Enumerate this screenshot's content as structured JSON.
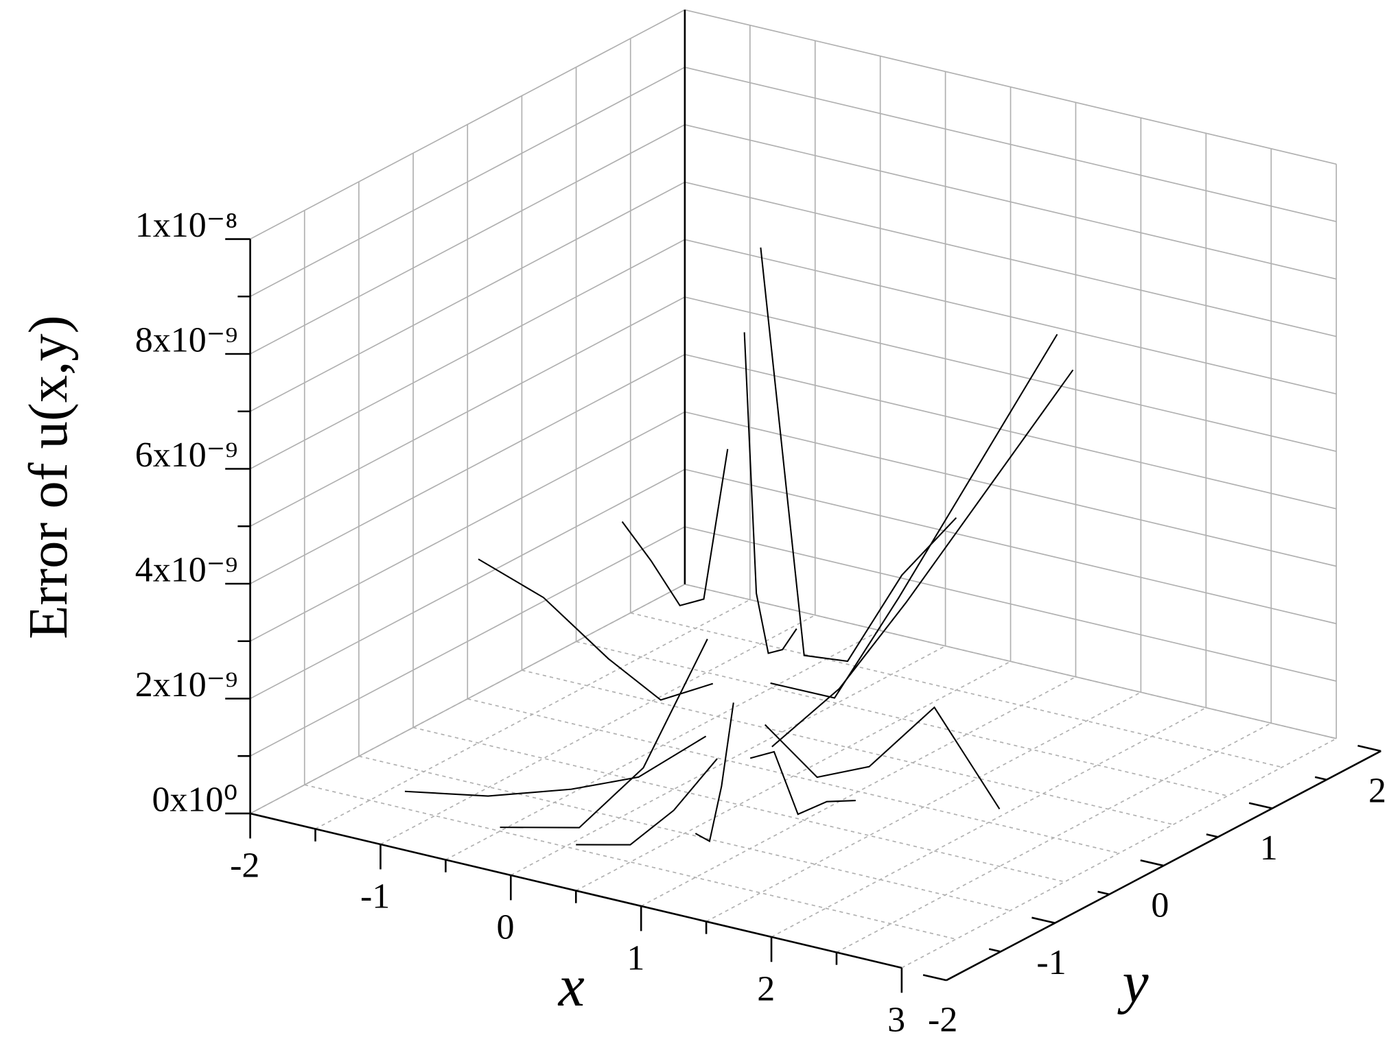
{
  "chart_data": {
    "type": "surface3d",
    "z_label": "Error of u(x,y)",
    "x_label": "x",
    "y_label": "y",
    "xlim": [
      -2,
      3
    ],
    "ylim": [
      -2,
      2
    ],
    "zlim": [
      0,
      1e-08
    ],
    "xticks": [
      -2,
      -1,
      0,
      1,
      2,
      3
    ],
    "xminor_ticks": [
      -1.5,
      -0.5,
      0.5,
      1.5,
      2.5
    ],
    "yticks": [
      -2,
      -1,
      0,
      1,
      2
    ],
    "yminor_ticks": [
      -1.5,
      -0.5,
      0.5,
      1.5
    ],
    "zticks": [
      {
        "value": 0,
        "label": "0x10⁰"
      },
      {
        "value": 2e-09,
        "label": "2x10⁻⁹"
      },
      {
        "value": 4e-09,
        "label": "4x10⁻⁹"
      },
      {
        "value": 6e-09,
        "label": "6x10⁻⁹"
      },
      {
        "value": 8e-09,
        "label": "8x10⁻⁹"
      },
      {
        "value": 1e-08,
        "label": "1x10⁻⁸"
      }
    ],
    "zminor_ticks": [
      1e-09,
      3e-09,
      5e-09,
      7e-09,
      9e-09
    ],
    "grid": true,
    "color": "#000000",
    "traces": [
      {
        "x": [
          0.7,
          1.1,
          1.5,
          2.0,
          2.5
        ],
        "y": [
          -0.5,
          -0.5,
          -0.5,
          -0.5,
          -0.5
        ],
        "z": [
          1.5e-09,
          8e-10,
          1.2e-09,
          2.5e-09,
          1e-09
        ]
      },
      {
        "x": [
          0.67,
          1.02,
          1.37,
          1.8,
          2.23
        ],
        "y": [
          -0.4,
          -0.2,
          0,
          0.25,
          0.5
        ],
        "z": [
          1e-09,
          2e-09,
          3.5e-09,
          5.5e-09,
          7.5e-09
        ]
      },
      {
        "x": [
          0.6,
          0.8,
          1.0,
          1.25,
          1.5
        ],
        "y": [
          -0.33,
          0.02,
          0.37,
          0.8,
          1.23
        ],
        "z": [
          2e-09,
          1.5e-09,
          3e-09,
          5e-09,
          7e-09
        ]
      },
      {
        "x": [
          0.5,
          0.5,
          0.5,
          0.5,
          0.5
        ],
        "y": [
          -0.3,
          0.1,
          0.5,
          1.0,
          1.5
        ],
        "z": [
          9.5e-09,
          2e-09,
          1.5e-09,
          2.5e-09,
          3e-09
        ]
      },
      {
        "x": [
          0.4,
          0.2,
          0,
          -0.25,
          -0.5
        ],
        "y": [
          -0.33,
          0.02,
          0.37,
          0.8,
          1.23
        ],
        "z": [
          8e-09,
          3e-09,
          1.5e-09,
          1e-09,
          8e-10
        ]
      },
      {
        "x": [
          0.33,
          -0.02,
          -0.37,
          -0.8,
          -1.23
        ],
        "y": [
          -0.4,
          -0.2,
          0,
          0.25,
          0.5
        ],
        "z": [
          6e-09,
          3e-09,
          2.5e-09,
          2.8e-09,
          3e-09
        ]
      },
      {
        "x": [
          0.3,
          -0.1,
          -0.5,
          -1.0,
          -1.5
        ],
        "y": [
          -0.5,
          -0.5,
          -0.5,
          -0.5,
          -0.5
        ],
        "z": [
          2e-09,
          1.5e-09,
          2e-09,
          2.8e-09,
          3.2e-09
        ]
      },
      {
        "x": [
          0.33,
          -0.02,
          -0.37,
          -0.8,
          -1.23
        ],
        "y": [
          -0.6,
          -0.8,
          -1.0,
          -1.25,
          -1.5
        ],
        "z": [
          1.2e-09,
          5e-10,
          3e-10,
          2e-10,
          3e-10
        ]
      },
      {
        "x": [
          0.4,
          0.2,
          0,
          -0.25
        ],
        "y": [
          -0.67,
          -1.02,
          -1.37,
          -1.8
        ],
        "z": [
          3e-09,
          1e-09,
          2e-10,
          5e-10
        ]
      },
      {
        "x": [
          0.5,
          0.5,
          0.5,
          0.5
        ],
        "y": [
          -0.7,
          -1.1,
          -1.5,
          -2.0
        ],
        "z": [
          1e-09,
          5e-10,
          3e-10,
          8e-10
        ]
      },
      {
        "x": [
          0.6,
          0.8,
          1.0,
          1.25
        ],
        "y": [
          -0.67,
          -1.02,
          -1.37,
          -1.8
        ],
        "z": [
          2e-09,
          1e-09,
          5e-10,
          1.2e-09
        ]
      },
      {
        "x": [
          0.67,
          1.02,
          1.37,
          1.8,
          2.23
        ],
        "y": [
          -0.6,
          -0.8,
          -1.0,
          -1.25,
          -1.5
        ],
        "z": [
          1e-09,
          1.5e-09,
          8e-10,
          1.5e-09,
          2e-09
        ]
      }
    ]
  }
}
